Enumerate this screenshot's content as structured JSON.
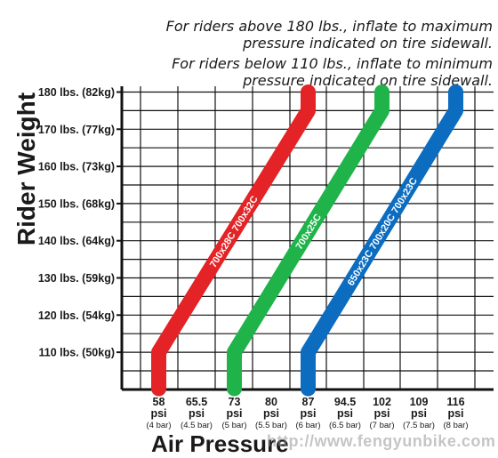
{
  "notes": {
    "line1": "For riders above 180 lbs., inflate to maximum",
    "line2": "pressure indicated on tire sidewall.",
    "line3": "For riders below 110 lbs., inflate to minimum",
    "line4": "pressure indicated on tire sidewall."
  },
  "watermark": "http://www.fengyunbike.com",
  "chart_data": {
    "type": "line",
    "xlabel": "Air Pressure",
    "ylabel": "Rider Weight",
    "xlim": [
      58,
      116
    ],
    "ylim": [
      110,
      180
    ],
    "grid": true,
    "x_ticks": [
      {
        "value": 58,
        "psi": "58",
        "unit": "psi",
        "bar": "(4 bar)"
      },
      {
        "value": 65.5,
        "psi": "65.5",
        "unit": "psi",
        "bar": "(4.5 bar)"
      },
      {
        "value": 73,
        "psi": "73",
        "unit": "psi",
        "bar": "(5 bar)"
      },
      {
        "value": 80,
        "psi": "80",
        "unit": "psi",
        "bar": "(5.5 bar)"
      },
      {
        "value": 87,
        "psi": "87",
        "unit": "psi",
        "bar": "(6 bar)"
      },
      {
        "value": 94.5,
        "psi": "94.5",
        "unit": "psi",
        "bar": "(6.5 bar)"
      },
      {
        "value": 102,
        "psi": "102",
        "unit": "psi",
        "bar": "(7 bar)"
      },
      {
        "value": 109,
        "psi": "109",
        "unit": "psi",
        "bar": "(7.5 bar)"
      },
      {
        "value": 116,
        "psi": "116",
        "unit": "psi",
        "bar": "(8 bar)"
      }
    ],
    "y_ticks": [
      {
        "value": 110,
        "label": "110 lbs. (50kg)"
      },
      {
        "value": 120,
        "label": "120 lbs. (54kg)"
      },
      {
        "value": 130,
        "label": "130 lbs. (59kg)"
      },
      {
        "value": 140,
        "label": "140 lbs. (64kg)"
      },
      {
        "value": 150,
        "label": "150 lbs. (68kg)"
      },
      {
        "value": 160,
        "label": "160 lbs. (73kg)"
      },
      {
        "value": 170,
        "label": "170 lbs. (77kg)"
      },
      {
        "value": 180,
        "label": "180 lbs. (82kg)"
      }
    ],
    "series": [
      {
        "label": "700x28C 700x32C",
        "color": "#e32325",
        "points": [
          [
            58,
            100
          ],
          [
            58,
            110
          ],
          [
            87,
            175
          ],
          [
            87,
            180
          ]
        ]
      },
      {
        "label": "700x25C",
        "color": "#1fb34a",
        "points": [
          [
            73,
            100
          ],
          [
            73,
            110
          ],
          [
            102,
            175
          ],
          [
            102,
            180
          ]
        ]
      },
      {
        "label": "650x23C 700x20C 700x23C",
        "color": "#0b6cc0",
        "points": [
          [
            87,
            100
          ],
          [
            87,
            110
          ],
          [
            116,
            175
          ],
          [
            116,
            180
          ]
        ]
      }
    ]
  }
}
